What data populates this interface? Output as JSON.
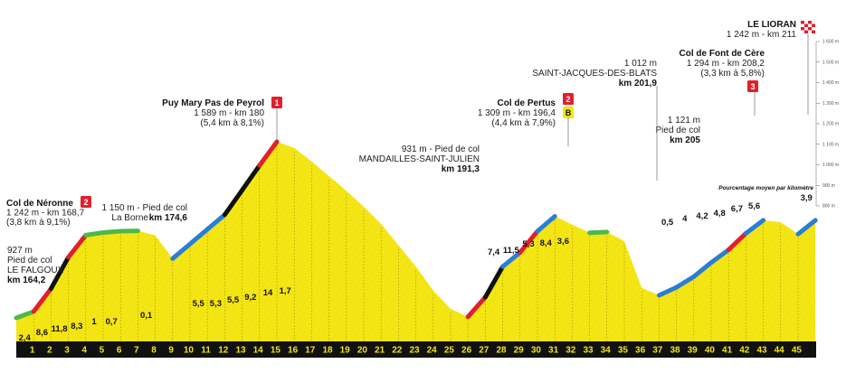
{
  "chart_data": {
    "type": "area",
    "km_axis": {
      "start_km": 0,
      "end_km": 46,
      "tick_labels": [
        "1",
        "2",
        "3",
        "4",
        "5",
        "6",
        "7",
        "8",
        "9",
        "10",
        "11",
        "12",
        "13",
        "14",
        "15",
        "16",
        "17",
        "18",
        "19",
        "20",
        "21",
        "22",
        "23",
        "24",
        "25",
        "26",
        "27",
        "28",
        "29",
        "30",
        "31",
        "32",
        "33",
        "34",
        "35",
        "36",
        "37",
        "38",
        "39",
        "40",
        "41",
        "42",
        "43",
        "44",
        "45"
      ]
    },
    "elevation_axis": {
      "ylim": [
        800,
        1600
      ],
      "tick_labels": [
        "800 m",
        "900 m",
        "1 000 m",
        "1 100 m",
        "1 200 m",
        "1 300 m",
        "1 400 m",
        "1 500 m",
        "1 600 m"
      ]
    },
    "profile": {
      "x": [
        0,
        1,
        2,
        3,
        4,
        5,
        6,
        7,
        8,
        9,
        10,
        11,
        12,
        13,
        14,
        15,
        16,
        17,
        18,
        19,
        20,
        21,
        22,
        23,
        24,
        25,
        26,
        27,
        28,
        29,
        30,
        31,
        32,
        33,
        34,
        35,
        36,
        37,
        38,
        39,
        40,
        41,
        42,
        43,
        44,
        45,
        46
      ],
      "y": [
        927,
        951,
        1037,
        1155,
        1238,
        1248,
        1253,
        1254,
        1237,
        1150,
        1205,
        1260,
        1315,
        1407,
        1500,
        1589,
        1566,
        1515,
        1460,
        1405,
        1345,
        1280,
        1200,
        1120,
        1030,
        961,
        931,
        1005,
        1120,
        1173,
        1253,
        1309,
        1278,
        1247,
        1250,
        1215,
        1040,
        1012,
        1042,
        1082,
        1135,
        1183,
        1245,
        1294,
        1287,
        1242,
        1294
      ]
    },
    "gradients": [
      {
        "km": 1,
        "value": "2,4"
      },
      {
        "km": 2,
        "value": "8,6"
      },
      {
        "km": 3,
        "value": "11,8"
      },
      {
        "km": 4,
        "value": "8,3"
      },
      {
        "km": 5,
        "value": "1"
      },
      {
        "km": 6,
        "value": "0,7"
      },
      {
        "km": 8,
        "value": "0,1"
      },
      {
        "km": 11,
        "value": "5,5"
      },
      {
        "km": 12,
        "value": "5,3"
      },
      {
        "km": 13,
        "value": "5,5"
      },
      {
        "km": 14,
        "value": "9,2"
      },
      {
        "km": 15,
        "value": "14"
      },
      {
        "km": 16,
        "value": "1,7"
      },
      {
        "km": 28,
        "value": "7,4"
      },
      {
        "km": 29,
        "value": "11,5"
      },
      {
        "km": 30,
        "value": "5,3"
      },
      {
        "km": 31,
        "value": "8,4"
      },
      {
        "km": 32,
        "value": "3,6"
      },
      {
        "km": 38,
        "value": "0,5"
      },
      {
        "km": 39,
        "value": "4"
      },
      {
        "km": 40,
        "value": "4,2"
      },
      {
        "km": 41,
        "value": "4,8"
      },
      {
        "km": 42,
        "value": "6,7"
      },
      {
        "km": 43,
        "value": "5,6"
      },
      {
        "km": 46,
        "value": "3,9"
      }
    ],
    "climb_colors": {
      "under_3": "#4db848",
      "3_to_6": "#2a7ed4",
      "6_to_9": "#e0202d",
      "over_9": "#111111",
      "descent": "#aaaaaa",
      "fill": "#f4e514"
    },
    "annotations": {
      "start": {
        "lines": [
          "927 m",
          "Pied de col",
          "LE FALGOUX",
          "km 164,2"
        ]
      },
      "col_neronne": {
        "lines": [
          "Col de Néronne",
          "1 242 m - km 168,7",
          "(3,8 km à 9,1%)"
        ],
        "category": "2"
      },
      "la_borne": {
        "lines": [
          "1 150 m - Pied de col",
          "La Borne",
          "km 174,6"
        ]
      },
      "puy_mary": {
        "lines": [
          "Puy Mary Pas de Peyrol",
          "1 589 m - km 180",
          "(5,4 km à 8,1%)"
        ],
        "category": "1"
      },
      "mandailles": {
        "lines": [
          "931 m - Pied de col",
          "MANDAILLES-SAINT-JULIEN",
          "km 191,3"
        ]
      },
      "col_pertus": {
        "lines": [
          "Col de Pertus",
          "1 309 m - km 196,4",
          "(4,4 km à 7,9%)"
        ],
        "category": "2",
        "bonus": "B"
      },
      "saint_jacques": {
        "lines": [
          "1 012 m",
          "SAINT-JACQUES-DES-BLATS",
          "km 201,9"
        ]
      },
      "font_de_cere_foot": {
        "lines": [
          "1 121 m",
          "Pied de col",
          "km 205"
        ]
      },
      "col_font_de_cere": {
        "lines": [
          "Col de Font de Cère",
          "1 294 m - km 208,2",
          "(3,3 km à 5,8%)"
        ],
        "category": "3"
      },
      "le_lioran": {
        "lines": [
          "LE LIORAN",
          "1 242 m - km 211"
        ]
      }
    },
    "note": "Pourcentage moyen par kilomètre"
  }
}
